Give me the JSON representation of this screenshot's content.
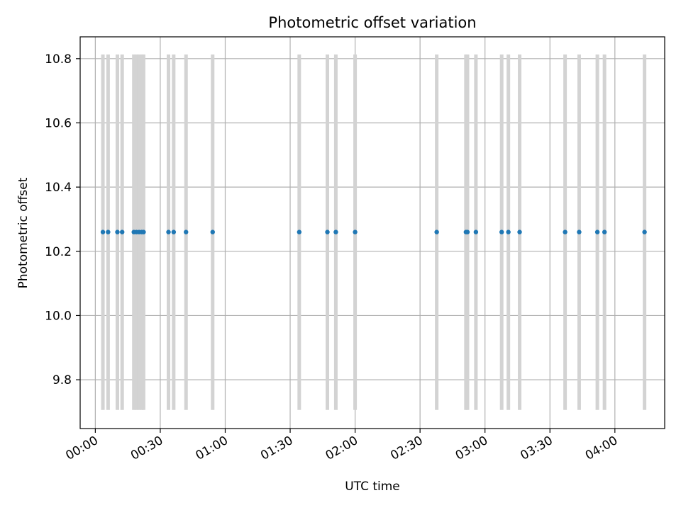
{
  "chart_data": {
    "type": "scatter",
    "title": "Photometric offset variation",
    "xlabel": "UTC time",
    "ylabel": "Photometric offset",
    "x_unit": "minutes",
    "xlim": [
      -7,
      263
    ],
    "ylim": [
      9.648,
      10.868
    ],
    "xticks": [
      {
        "value": 0,
        "label": "00:00"
      },
      {
        "value": 30,
        "label": "00:30"
      },
      {
        "value": 60,
        "label": "01:00"
      },
      {
        "value": 90,
        "label": "01:30"
      },
      {
        "value": 120,
        "label": "02:00"
      },
      {
        "value": 150,
        "label": "02:30"
      },
      {
        "value": 180,
        "label": "03:00"
      },
      {
        "value": 210,
        "label": "03:30"
      },
      {
        "value": 240,
        "label": "04:00"
      }
    ],
    "yticks": [
      {
        "value": 9.8,
        "label": "9.8"
      },
      {
        "value": 10.0,
        "label": "10.0"
      },
      {
        "value": 10.2,
        "label": "10.2"
      },
      {
        "value": 10.4,
        "label": "10.4"
      },
      {
        "value": 10.6,
        "label": "10.6"
      },
      {
        "value": 10.8,
        "label": "10.8"
      }
    ],
    "grid": true,
    "colors": {
      "points": "#1f77b4",
      "error_bars": "#d3d3d3",
      "grid": "#b0b0b0",
      "axes": "#000000"
    },
    "error_bar_range": [
      9.706,
      10.813
    ],
    "series": [
      {
        "points": [
          {
            "x": 3.5,
            "y": 10.26
          },
          {
            "x": 5.9,
            "y": 10.26
          },
          {
            "x": 10.2,
            "y": 10.26
          },
          {
            "x": 12.4,
            "y": 10.26
          },
          {
            "x": 17.8,
            "y": 10.26
          },
          {
            "x": 19.0,
            "y": 10.26
          },
          {
            "x": 20.2,
            "y": 10.26
          },
          {
            "x": 21.4,
            "y": 10.26
          },
          {
            "x": 22.3,
            "y": 10.26
          },
          {
            "x": 33.8,
            "y": 10.26
          },
          {
            "x": 36.2,
            "y": 10.26
          },
          {
            "x": 41.9,
            "y": 10.26
          },
          {
            "x": 54.2,
            "y": 10.26
          },
          {
            "x": 94.2,
            "y": 10.26
          },
          {
            "x": 107.2,
            "y": 10.26
          },
          {
            "x": 111.1,
            "y": 10.26
          },
          {
            "x": 120.0,
            "y": 10.26
          },
          {
            "x": 157.7,
            "y": 10.26
          },
          {
            "x": 171.2,
            "y": 10.26
          },
          {
            "x": 171.9,
            "y": 10.26
          },
          {
            "x": 175.8,
            "y": 10.26
          },
          {
            "x": 187.7,
            "y": 10.26
          },
          {
            "x": 190.8,
            "y": 10.26
          },
          {
            "x": 196.0,
            "y": 10.26
          },
          {
            "x": 217.0,
            "y": 10.26
          },
          {
            "x": 223.5,
            "y": 10.26
          },
          {
            "x": 231.9,
            "y": 10.26
          },
          {
            "x": 235.2,
            "y": 10.26
          },
          {
            "x": 253.7,
            "y": 10.26
          }
        ]
      }
    ]
  }
}
